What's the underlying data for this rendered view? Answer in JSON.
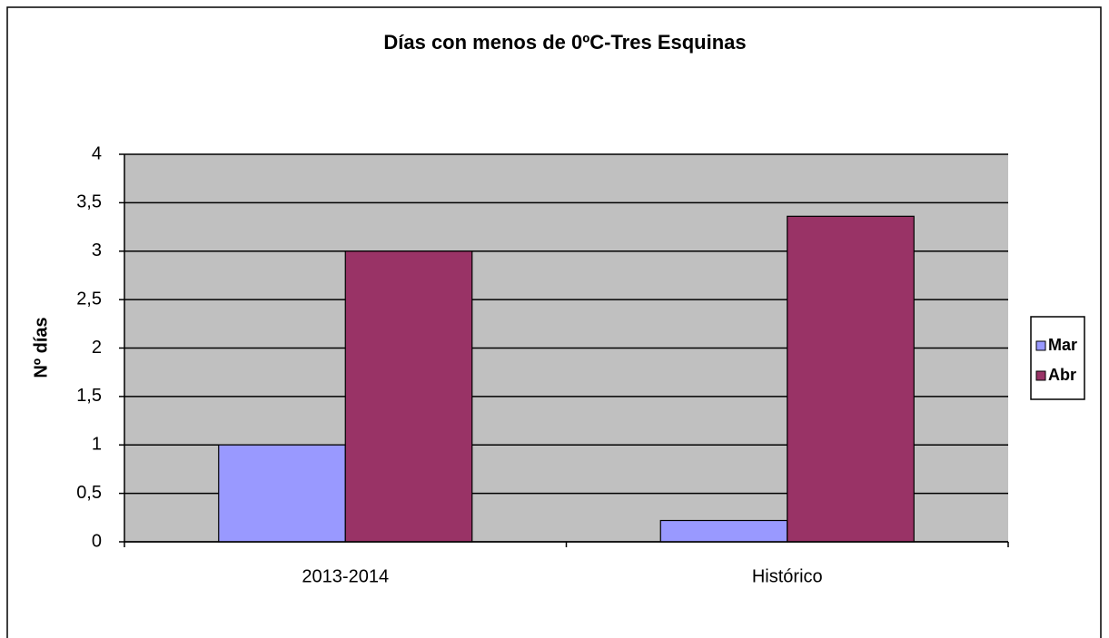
{
  "chart_data": {
    "type": "bar",
    "title": "Días con menos de 0ºC-Tres Esquinas",
    "y_label": "Nº días",
    "categories": [
      "2013-2014",
      "Histórico"
    ],
    "series": [
      {
        "name": "Mar",
        "color": "#9999ff",
        "values": [
          1,
          0.22
        ]
      },
      {
        "name": "Abr",
        "color": "#993366",
        "values": [
          3,
          3.36
        ]
      }
    ],
    "ylim": [
      0,
      4
    ],
    "yticks": [
      0,
      {
        "value": 0.5,
        "label": "0,5"
      },
      1,
      {
        "value": 1.5,
        "label": "1,5"
      },
      2,
      {
        "value": 2.5,
        "label": "2,5"
      },
      3,
      {
        "value": 3.5,
        "label": "3,5"
      },
      4
    ],
    "grid": true,
    "legend": "right"
  }
}
